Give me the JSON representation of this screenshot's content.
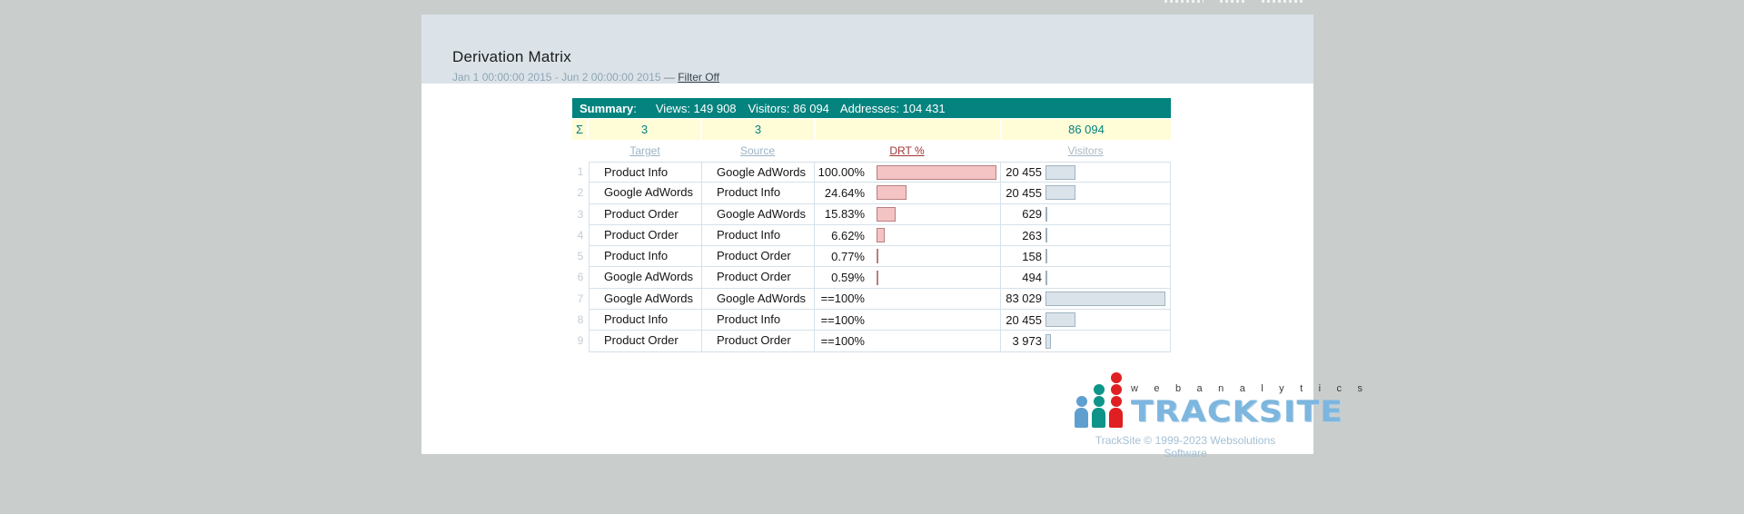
{
  "meta": {
    "drt_max": 100,
    "visitors_max": 83029
  },
  "colors": {
    "page_background": "#c9cdcc",
    "panel_header": "#dbe3e9",
    "summary_teal": "#04837f",
    "totals_yellow": "#fffcd8",
    "totals_text_teal": "#03817d",
    "drt_bar_fill": "#f4c3c3",
    "drt_bar_border": "#b97e80",
    "visitors_bar_fill": "#dbe3ea",
    "visitors_bar_border": "#9fb3c1",
    "sorted_column_red": "#a13434",
    "brand_blue": "#7db6de",
    "brand_red": "#e01f22",
    "brand_teal": "#0e9488"
  },
  "header": {
    "title": "Derivation Matrix",
    "date_range": "Jan 1 00:00:00 2015 - Jun 2 00:00:00 2015",
    "separator": "—",
    "filter_link": "Filter Off"
  },
  "summary": {
    "label": "Summary",
    "colon": ":",
    "views": "Views: 149 908",
    "visitors": "Visitors: 86 094",
    "addresses": "Addresses: 104 431"
  },
  "totals": {
    "sigma": "Σ",
    "target": "3",
    "source": "3",
    "drt": "",
    "visitors": "86 094"
  },
  "columns": {
    "target": "Target",
    "source": "Source",
    "drt": "DRT %",
    "visitors": "Visitors"
  },
  "rows": [
    {
      "n": "1",
      "target": "Product Info",
      "source": "Google AdWords",
      "drt": "100.00%",
      "drt_pct": 100.0,
      "visitors": "20 455",
      "visitors_val": 20455
    },
    {
      "n": "2",
      "target": "Google AdWords",
      "source": "Product Info",
      "drt": "24.64%",
      "drt_pct": 24.64,
      "visitors": "20 455",
      "visitors_val": 20455
    },
    {
      "n": "3",
      "target": "Product Order",
      "source": "Google AdWords",
      "drt": "15.83%",
      "drt_pct": 15.83,
      "visitors": "629",
      "visitors_val": 629
    },
    {
      "n": "4",
      "target": "Product Order",
      "source": "Product Info",
      "drt": "6.62%",
      "drt_pct": 6.62,
      "visitors": "263",
      "visitors_val": 263
    },
    {
      "n": "5",
      "target": "Product Info",
      "source": "Product Order",
      "drt": "0.77%",
      "drt_pct": 0.77,
      "visitors": "158",
      "visitors_val": 158
    },
    {
      "n": "6",
      "target": "Google AdWords",
      "source": "Product Order",
      "drt": "0.59%",
      "drt_pct": 0.59,
      "visitors": "494",
      "visitors_val": 494
    },
    {
      "n": "7",
      "target": "Google AdWords",
      "source": "Google AdWords",
      "drt": "==100%",
      "drt_pct": null,
      "visitors": "83 029",
      "visitors_val": 83029
    },
    {
      "n": "8",
      "target": "Product Info",
      "source": "Product Info",
      "drt": "==100%",
      "drt_pct": null,
      "visitors": "20 455",
      "visitors_val": 20455
    },
    {
      "n": "9",
      "target": "Product Order",
      "source": "Product Order",
      "drt": "==100%",
      "drt_pct": null,
      "visitors": "3 973",
      "visitors_val": 3973
    }
  ],
  "footer": {
    "tagline": "w e b   a n a l y t i c s",
    "brand": "TRACKSITE",
    "copyright": "TrackSite © 1999-2023 Websolutions Software"
  }
}
